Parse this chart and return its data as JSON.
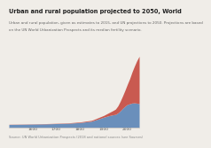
{
  "title": "Urban and rural population projected to 2050, World",
  "subtitle_line1": "Urban and rural population, given as estimates to 2015, and UN projections to 2050. Projections are based",
  "subtitle_line2": "on the UN World Urbanization Prospects and its median fertility scenario.",
  "source": "Source: UN World Urbanization Prospects (2018 and national sources (see Sources)",
  "years": [
    1500,
    1550,
    1600,
    1650,
    1700,
    1750,
    1800,
    1850,
    1900,
    1920,
    1940,
    1950,
    1960,
    1970,
    1980,
    1990,
    2000,
    2010,
    2020,
    2030,
    2040,
    2050
  ],
  "rural_pop": [
    0.38,
    0.4,
    0.43,
    0.46,
    0.5,
    0.55,
    0.65,
    0.85,
    1.4,
    1.6,
    1.75,
    1.8,
    2.0,
    2.3,
    2.65,
    2.95,
    3.2,
    3.3,
    3.4,
    3.42,
    3.38,
    3.32
  ],
  "urban_pop": [
    0.025,
    0.028,
    0.03,
    0.033,
    0.038,
    0.05,
    0.08,
    0.12,
    0.25,
    0.4,
    0.6,
    0.75,
    1.0,
    1.35,
    1.75,
    2.25,
    2.85,
    3.55,
    4.4,
    5.2,
    6.0,
    6.68
  ],
  "rural_color": "#6a8fbb",
  "urban_color": "#c95a50",
  "bg_color": "#f0ede8",
  "title_color": "#222222",
  "subtitle_color": "#666666",
  "source_color": "#888888",
  "title_fontsize": 4.8,
  "subtitle_fontsize": 3.0,
  "source_fontsize": 2.6,
  "xlim": [
    1500,
    2050
  ],
  "ylim": [
    0,
    10.5
  ],
  "tick_years": [
    1600,
    1700,
    1800,
    1900,
    2000
  ]
}
